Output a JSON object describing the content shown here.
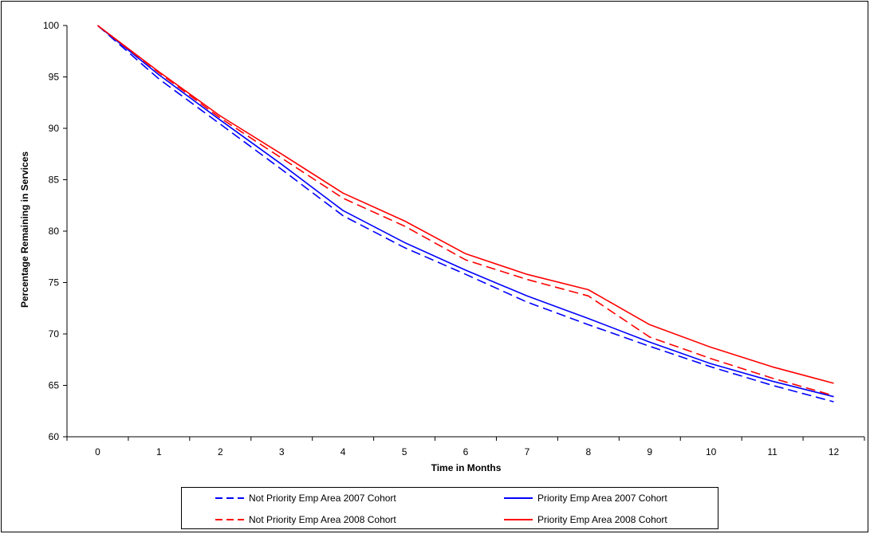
{
  "chart_data": {
    "type": "line",
    "title": "",
    "xlabel": "Time in Months",
    "ylabel": "Percentage Remaining in Services",
    "categories": [
      "0",
      "1",
      "2",
      "3",
      "4",
      "5",
      "6",
      "7",
      "8",
      "9",
      "10",
      "11",
      "12"
    ],
    "ylim": [
      60,
      100
    ],
    "yticks": [
      60,
      65,
      70,
      75,
      80,
      85,
      90,
      95,
      100
    ],
    "grid": false,
    "legend_position": "bottom",
    "series": [
      {
        "name": "Not Priority Emp Area 2007 Cohort",
        "color": "#0000ff",
        "dash": "dashed",
        "values": [
          100,
          94.8,
          90.4,
          86.0,
          81.5,
          78.4,
          75.8,
          73.1,
          70.9,
          68.8,
          66.8,
          65.0,
          63.4
        ]
      },
      {
        "name": "Priority Emp Area 2007 Cohort",
        "color": "#0000ff",
        "dash": "solid",
        "values": [
          100,
          95.2,
          90.8,
          86.5,
          82.0,
          78.9,
          76.2,
          73.7,
          71.5,
          69.2,
          67.1,
          65.4,
          63.9
        ]
      },
      {
        "name": "Not Priority Emp Area 2008 Cohort",
        "color": "#ff0000",
        "dash": "dashed",
        "values": [
          100,
          95.4,
          91.0,
          87.1,
          83.2,
          80.5,
          77.2,
          75.3,
          73.7,
          69.7,
          67.6,
          65.7,
          64.0
        ]
      },
      {
        "name": "Priority Emp Area 2008 Cohort",
        "color": "#ff0000",
        "dash": "solid",
        "values": [
          100,
          95.5,
          91.2,
          87.5,
          83.7,
          81.0,
          77.8,
          75.8,
          74.3,
          70.9,
          68.7,
          66.8,
          65.2
        ]
      }
    ]
  }
}
